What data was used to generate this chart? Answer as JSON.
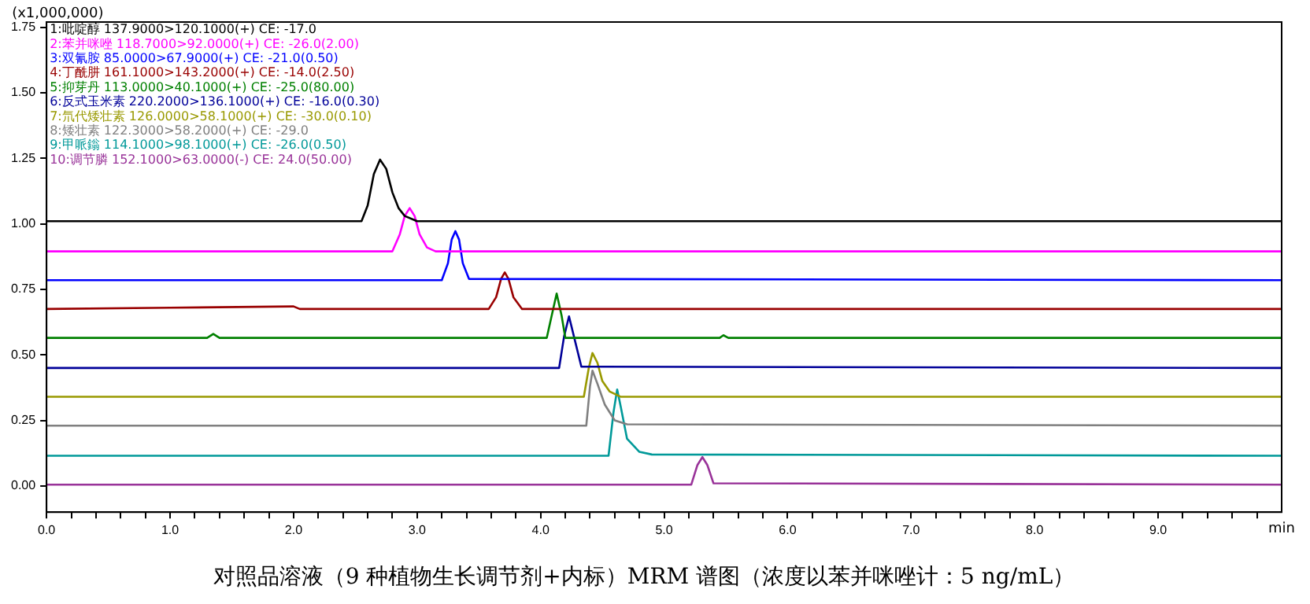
{
  "chart_data": {
    "type": "line",
    "title": "对照品溶液（9 种植物生长调节剂+内标）MRM 谱图（浓度以苯并咪唑计：5 ng/mL）",
    "xlabel": "min",
    "ylabel": "(x1,000,000)",
    "legend": "top left",
    "marker": "none",
    "line_style": "solid",
    "grid": false,
    "xlim": [
      0,
      10
    ],
    "ylim": [
      -0.1,
      1.77
    ],
    "xticks": [
      {
        "value": 0,
        "label": "0.0"
      },
      {
        "value": 0.2,
        "label": null
      },
      {
        "value": 0.4,
        "label": null
      },
      {
        "value": 0.6,
        "label": null
      },
      {
        "value": 0.8,
        "label": null
      },
      {
        "value": 1,
        "label": "1.0"
      },
      {
        "value": 1.2,
        "label": null
      },
      {
        "value": 1.4,
        "label": null
      },
      {
        "value": 1.6,
        "label": null
      },
      {
        "value": 1.8,
        "label": null
      },
      {
        "value": 2,
        "label": "2.0"
      },
      {
        "value": 2.2,
        "label": null
      },
      {
        "value": 2.4,
        "label": null
      },
      {
        "value": 2.6,
        "label": null
      },
      {
        "value": 2.8,
        "label": null
      },
      {
        "value": 3,
        "label": "3.0"
      },
      {
        "value": 3.2,
        "label": null
      },
      {
        "value": 3.4,
        "label": null
      },
      {
        "value": 3.6,
        "label": null
      },
      {
        "value": 3.8,
        "label": null
      },
      {
        "value": 4,
        "label": "4.0"
      },
      {
        "value": 4.2,
        "label": null
      },
      {
        "value": 4.4,
        "label": null
      },
      {
        "value": 4.6,
        "label": null
      },
      {
        "value": 4.8,
        "label": null
      },
      {
        "value": 5,
        "label": "5.0"
      },
      {
        "value": 5.2,
        "label": null
      },
      {
        "value": 5.4,
        "label": null
      },
      {
        "value": 5.6,
        "label": null
      },
      {
        "value": 5.8,
        "label": null
      },
      {
        "value": 6,
        "label": "6.0"
      },
      {
        "value": 6.2,
        "label": null
      },
      {
        "value": 6.4,
        "label": null
      },
      {
        "value": 6.6,
        "label": null
      },
      {
        "value": 6.8,
        "label": null
      },
      {
        "value": 7,
        "label": "7.0"
      },
      {
        "value": 7.2,
        "label": null
      },
      {
        "value": 7.4,
        "label": null
      },
      {
        "value": 7.6,
        "label": null
      },
      {
        "value": 7.8,
        "label": null
      },
      {
        "value": 8,
        "label": "8.0"
      },
      {
        "value": 8.2,
        "label": null
      },
      {
        "value": 8.4,
        "label": null
      },
      {
        "value": 8.6,
        "label": null
      },
      {
        "value": 8.8,
        "label": null
      },
      {
        "value": 9,
        "label": "9.0"
      },
      {
        "value": 9.2,
        "label": null
      },
      {
        "value": 9.4,
        "label": null
      },
      {
        "value": 9.6,
        "label": null
      },
      {
        "value": 9.8,
        "label": null
      }
    ],
    "yticks": [
      {
        "value": 0,
        "label": "0.00"
      },
      {
        "value": 0.25,
        "label": "0.25"
      },
      {
        "value": 0.5,
        "label": "0.50"
      },
      {
        "value": 0.75,
        "label": "0.75"
      },
      {
        "value": 1,
        "label": "1.00"
      },
      {
        "value": 1.25,
        "label": "1.25"
      },
      {
        "value": 1.5,
        "label": "1.50"
      },
      {
        "value": 1.75,
        "label": "1.75"
      }
    ],
    "series": [
      {
        "name": "1:吡啶醇 137.9000>120.1000(+) CE: -17.0",
        "color": "#000000",
        "x": [
          0,
          2.55,
          2.6,
          2.65,
          2.7,
          2.75,
          2.8,
          2.85,
          2.9,
          3.0,
          10
        ],
        "values": [
          1.01,
          1.01,
          1.07,
          1.19,
          1.245,
          1.21,
          1.12,
          1.06,
          1.03,
          1.01,
          1.01
        ]
      },
      {
        "name": "2:苯并咪唑 118.7000>92.0000(+) CE: -26.0(2.00)",
        "color": "#ff00ff",
        "x": [
          0,
          2.8,
          2.86,
          2.9,
          2.94,
          2.98,
          3.02,
          3.08,
          3.15,
          10
        ],
        "values": [
          0.895,
          0.895,
          0.96,
          1.03,
          1.06,
          1.03,
          0.96,
          0.91,
          0.895,
          0.895
        ]
      },
      {
        "name": "3:双氰胺 85.0000>67.9000(+) CE: -21.0(0.50)",
        "color": "#0000ff",
        "x": [
          0,
          3.2,
          3.25,
          3.28,
          3.31,
          3.34,
          3.37,
          3.42,
          10
        ],
        "values": [
          0.785,
          0.785,
          0.85,
          0.94,
          0.972,
          0.94,
          0.85,
          0.79,
          0.785
        ]
      },
      {
        "name": "4:丁酰肼 161.1000>143.2000(+) CE: -14.0(2.50)",
        "color": "#990000",
        "x": [
          0,
          1.0,
          2.0,
          2.05,
          3.58,
          3.64,
          3.68,
          3.71,
          3.74,
          3.78,
          3.85,
          10
        ],
        "values": [
          0.675,
          0.68,
          0.685,
          0.675,
          0.675,
          0.72,
          0.79,
          0.815,
          0.79,
          0.72,
          0.675,
          0.675
        ]
      },
      {
        "name": "5:抑芽丹 113.0000>40.1000(+) CE: -25.0(80.00)",
        "color": "#008000",
        "x": [
          0,
          1.3,
          1.35,
          1.4,
          4.05,
          4.09,
          4.13,
          4.17,
          4.2,
          5.45,
          5.48,
          5.52,
          10
        ],
        "values": [
          0.565,
          0.565,
          0.58,
          0.565,
          0.565,
          0.65,
          0.734,
          0.65,
          0.565,
          0.565,
          0.575,
          0.565,
          0.565
        ]
      },
      {
        "name": "6:反式玉米素 220.2000>136.1000(+) CE: -16.0(0.30)",
        "color": "#000099",
        "x": [
          0,
          4.15,
          4.19,
          4.23,
          4.27,
          4.33,
          10
        ],
        "values": [
          0.45,
          0.45,
          0.57,
          0.647,
          0.57,
          0.455,
          0.45
        ]
      },
      {
        "name": "7:氘代矮壮素 126.0000>58.1000(+) CE: -30.0(0.10)",
        "color": "#999900",
        "x": [
          0,
          4.35,
          4.39,
          4.42,
          4.46,
          4.5,
          4.56,
          4.65,
          10
        ],
        "values": [
          0.34,
          0.34,
          0.45,
          0.507,
          0.47,
          0.4,
          0.36,
          0.34,
          0.34
        ]
      },
      {
        "name": "8:矮壮素 122.3000>58.2000(+) CE: -29.0",
        "color": "#808080",
        "x": [
          0,
          4.37,
          4.4,
          4.42,
          4.46,
          4.52,
          4.6,
          4.7,
          10
        ],
        "values": [
          0.23,
          0.23,
          0.38,
          0.44,
          0.39,
          0.31,
          0.25,
          0.235,
          0.23
        ]
      },
      {
        "name": "9:甲哌鎓 114.1000>98.1000(+) CE: -26.0(0.50)",
        "color": "#009999",
        "x": [
          0,
          4.55,
          4.59,
          4.62,
          4.65,
          4.7,
          4.8,
          4.9,
          10
        ],
        "values": [
          0.115,
          0.115,
          0.28,
          0.368,
          0.3,
          0.18,
          0.13,
          0.12,
          0.115
        ]
      },
      {
        "name": "10:调节膦 152.1000>63.0000(-) CE: 24.0(50.00)",
        "color": "#993399",
        "x": [
          0,
          5.22,
          5.27,
          5.31,
          5.35,
          5.4,
          10
        ],
        "values": [
          0.005,
          0.005,
          0.08,
          0.11,
          0.08,
          0.01,
          0.005
        ]
      }
    ]
  }
}
